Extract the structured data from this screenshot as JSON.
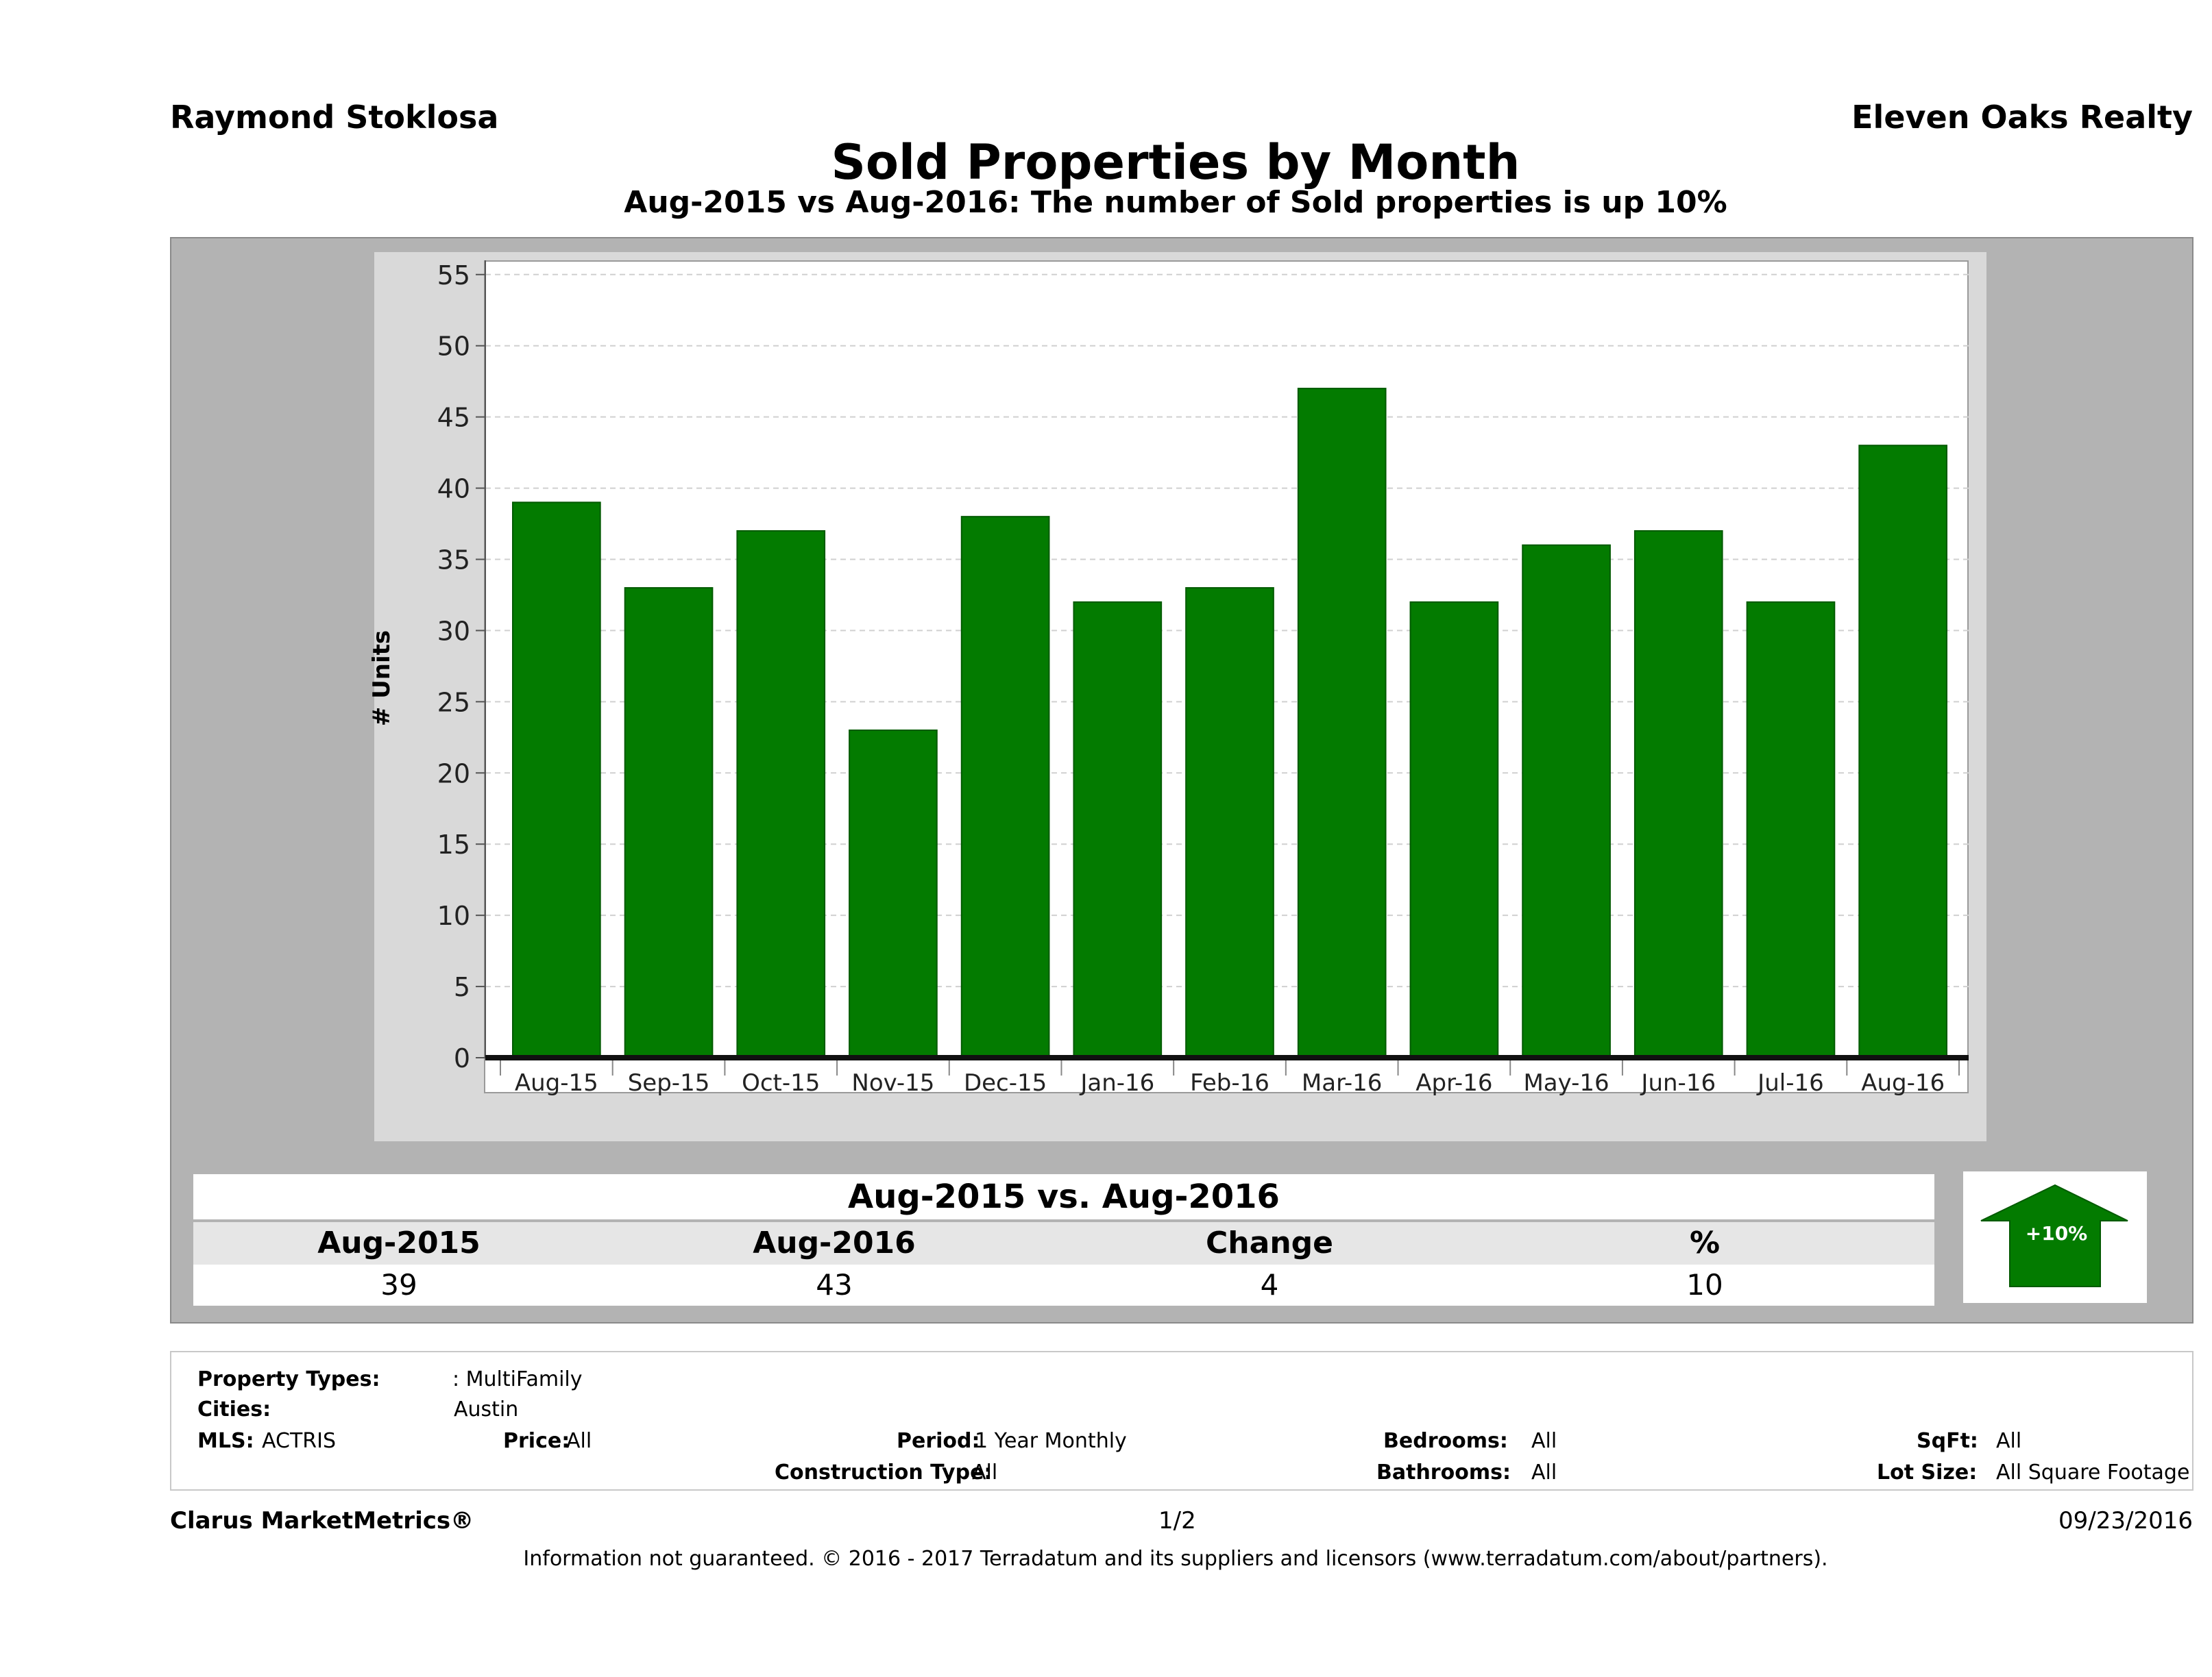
{
  "header": {
    "agent": "Raymond Stoklosa",
    "brokerage": "Eleven Oaks Realty",
    "title": "Sold Properties by Month",
    "subtitle": "Aug-2015 vs Aug-2016: The number of Sold  properties is up 10%"
  },
  "chart_data": {
    "type": "bar",
    "categories": [
      "Aug-15",
      "Sep-15",
      "Oct-15",
      "Nov-15",
      "Dec-15",
      "Jan-16",
      "Feb-16",
      "Mar-16",
      "Apr-16",
      "May-16",
      "Jun-16",
      "Jul-16",
      "Aug-16"
    ],
    "values": [
      39,
      33,
      37,
      23,
      38,
      32,
      33,
      47,
      32,
      36,
      37,
      32,
      43
    ],
    "ylabel": "# Units",
    "xlabel": "",
    "ylim": [
      0,
      56
    ],
    "yticks": [
      0,
      5,
      10,
      15,
      20,
      25,
      30,
      35,
      40,
      45,
      50,
      55
    ],
    "bar_color": "#037b00",
    "grid": true
  },
  "summary": {
    "title": "Aug-2015 vs. Aug-2016",
    "headers": [
      "Aug-2015",
      "Aug-2016",
      "Change",
      "%"
    ],
    "values": [
      "39",
      "43",
      "4",
      "10"
    ],
    "badge": "+10%",
    "badge_color": "#037b00"
  },
  "filters": {
    "property_types_label": "Property Types:",
    "property_types_value": ": MultiFamily",
    "cities_label": "Cities:",
    "cities_value": "Austin",
    "mls_label": "MLS:",
    "mls_value": "ACTRIS",
    "price_label": "Price:",
    "price_value": "All",
    "period_label": "Period:",
    "period_value": "1 Year Monthly",
    "construction_label": "Construction Type:",
    "construction_value": "All",
    "bedrooms_label": "Bedrooms:",
    "bedrooms_value": "All",
    "bathrooms_label": "Bathrooms:",
    "bathrooms_value": "All",
    "sqft_label": "SqFt:",
    "sqft_value": "All",
    "lot_label": "Lot Size:",
    "lot_value": "All Square Footage"
  },
  "footer": {
    "brand": "Clarus MarketMetrics®",
    "page": "1/2",
    "date": "09/23/2016",
    "disclaimer": "Information not guaranteed. © 2016 - 2017 Terradatum and its suppliers and licensors (www.terradatum.com/about/partners)."
  }
}
